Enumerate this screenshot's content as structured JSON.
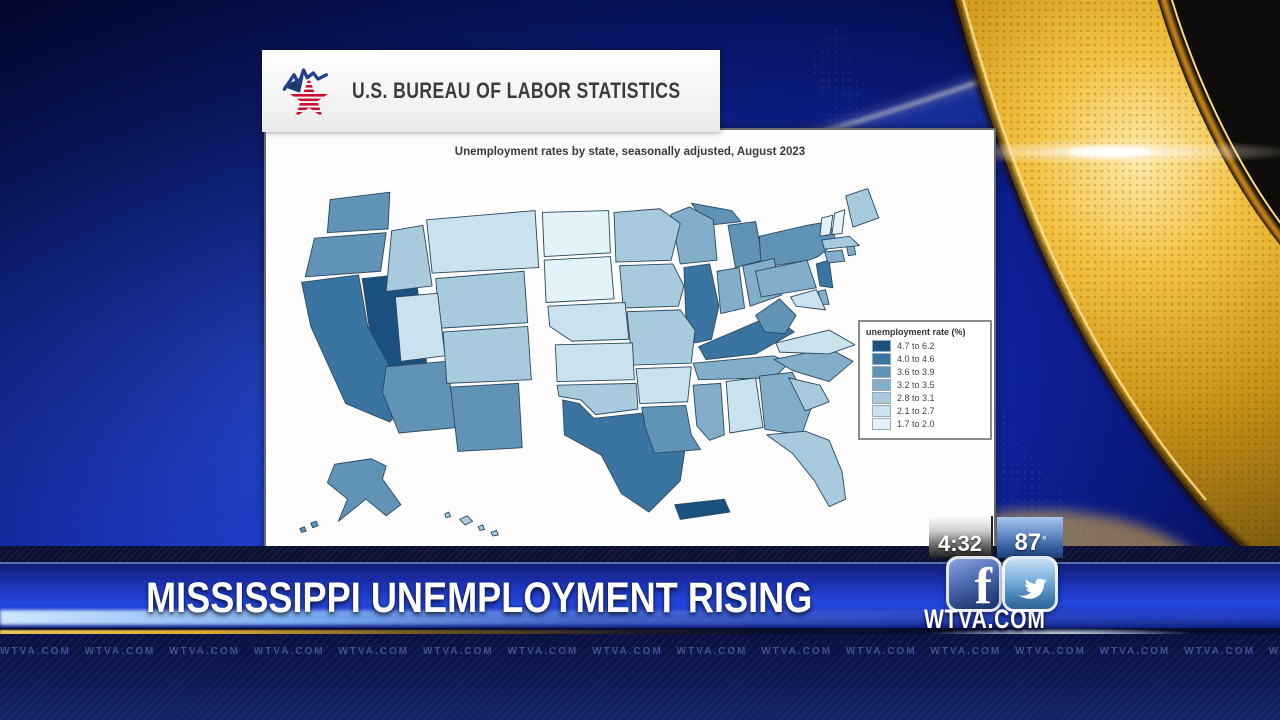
{
  "station": {
    "banner_headline": "MISSISSIPPI UNEMPLOYMENT RISING",
    "website": "WTVA.COM",
    "watermark_text": "WTVA.COM",
    "time": "4:32",
    "temperature_value": "87",
    "temperature_unit": "°",
    "social_icons": [
      "facebook",
      "twitter"
    ]
  },
  "bls": {
    "org_name": "U.S. BUREAU OF LABOR STATISTICS"
  },
  "chart_data": {
    "type": "choropleth",
    "title": "Unemployment rates by state, seasonally adjusted, August 2023",
    "region": "United States",
    "legend": {
      "title": "unemployment rate (%)",
      "position": "right",
      "buckets": [
        {
          "label": "4.7 to 6.2",
          "color": "#1a517e"
        },
        {
          "label": "4.0 to 4.6",
          "color": "#3a74a0"
        },
        {
          "label": "3.6 to 3.9",
          "color": "#6193b6"
        },
        {
          "label": "3.2 to 3.5",
          "color": "#83aec9"
        },
        {
          "label": "2.8 to 3.1",
          "color": "#a7cbdd"
        },
        {
          "label": "2.1 to 2.7",
          "color": "#c9e2ee"
        },
        {
          "label": "1.7 to 2.0",
          "color": "#e4f3f9"
        }
      ]
    },
    "states": [
      {
        "id": "NV",
        "range": "4.7 to 6.2"
      },
      {
        "id": "PR",
        "range": "4.7 to 6.2"
      },
      {
        "id": "CA",
        "range": "4.0 to 4.6"
      },
      {
        "id": "TX",
        "range": "4.0 to 4.6"
      },
      {
        "id": "IL",
        "range": "4.0 to 4.6"
      },
      {
        "id": "KY",
        "range": "4.0 to 4.6"
      },
      {
        "id": "NJ",
        "range": "4.0 to 4.6"
      },
      {
        "id": "WA",
        "range": "3.6 to 3.9"
      },
      {
        "id": "OR",
        "range": "3.6 to 3.9"
      },
      {
        "id": "AZ",
        "range": "3.6 to 3.9"
      },
      {
        "id": "NM",
        "range": "3.6 to 3.9"
      },
      {
        "id": "LA",
        "range": "3.6 to 3.9"
      },
      {
        "id": "MI",
        "range": "3.6 to 3.9"
      },
      {
        "id": "NY",
        "range": "3.6 to 3.9"
      },
      {
        "id": "WV",
        "range": "3.6 to 3.9"
      },
      {
        "id": "AK",
        "range": "3.6 to 3.9"
      },
      {
        "id": "WI",
        "range": "3.2 to 3.5"
      },
      {
        "id": "IN",
        "range": "3.2 to 3.5"
      },
      {
        "id": "OH",
        "range": "3.2 to 3.5"
      },
      {
        "id": "PA",
        "range": "3.2 to 3.5"
      },
      {
        "id": "CT",
        "range": "3.2 to 3.5"
      },
      {
        "id": "RI",
        "range": "3.2 to 3.5"
      },
      {
        "id": "TN",
        "range": "3.2 to 3.5"
      },
      {
        "id": "MS",
        "range": "3.2 to 3.5"
      },
      {
        "id": "GA",
        "range": "3.2 to 3.5"
      },
      {
        "id": "NC",
        "range": "3.2 to 3.5"
      },
      {
        "id": "DE",
        "range": "3.2 to 3.5"
      },
      {
        "id": "MN",
        "range": "2.8 to 3.1"
      },
      {
        "id": "IA",
        "range": "2.8 to 3.1"
      },
      {
        "id": "MO",
        "range": "2.8 to 3.1"
      },
      {
        "id": "OK",
        "range": "2.8 to 3.1"
      },
      {
        "id": "CO",
        "range": "2.8 to 3.1"
      },
      {
        "id": "WY",
        "range": "2.8 to 3.1"
      },
      {
        "id": "ID",
        "range": "2.8 to 3.1"
      },
      {
        "id": "FL",
        "range": "2.8 to 3.1"
      },
      {
        "id": "SC",
        "range": "2.8 to 3.1"
      },
      {
        "id": "MA",
        "range": "2.8 to 3.1"
      },
      {
        "id": "ME",
        "range": "2.8 to 3.1"
      },
      {
        "id": "HI",
        "range": "2.8 to 3.1"
      },
      {
        "id": "UT",
        "range": "2.1 to 2.7"
      },
      {
        "id": "KS",
        "range": "2.1 to 2.7"
      },
      {
        "id": "AR",
        "range": "2.1 to 2.7"
      },
      {
        "id": "AL",
        "range": "2.1 to 2.7"
      },
      {
        "id": "VA",
        "range": "2.1 to 2.7"
      },
      {
        "id": "MD",
        "range": "2.1 to 2.7"
      },
      {
        "id": "NE",
        "range": "2.1 to 2.7"
      },
      {
        "id": "MT",
        "range": "2.1 to 2.7"
      },
      {
        "id": "ND",
        "range": "1.7 to 2.0"
      },
      {
        "id": "SD",
        "range": "1.7 to 2.0"
      },
      {
        "id": "VT",
        "range": "1.7 to 2.0"
      },
      {
        "id": "NH",
        "range": "1.7 to 2.0"
      }
    ]
  },
  "colors": {
    "banner_blue": "#2546df",
    "background_blue": "#1b37c0",
    "background_gold": "#d99a12",
    "bls_star_red": "#c8102e",
    "bls_pulse_blue": "#23408f"
  }
}
